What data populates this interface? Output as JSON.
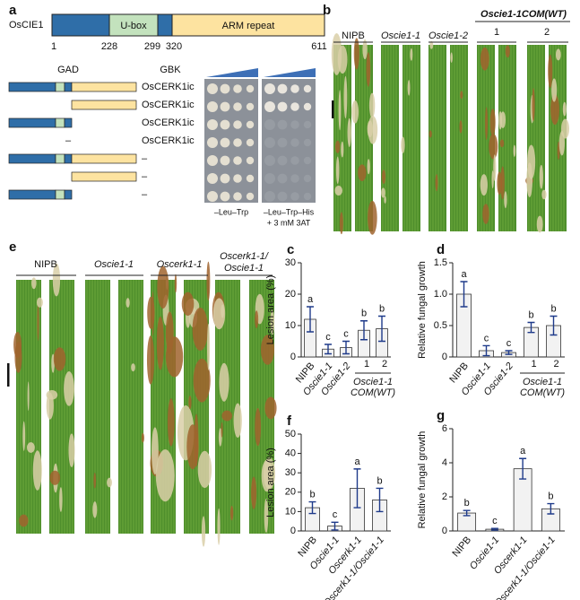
{
  "panel_a": {
    "label": "a",
    "protein": "OsCIE1",
    "domains": [
      "U-box",
      "ARM repeat"
    ],
    "positions": [
      "1",
      "228",
      "299",
      "320",
      "611"
    ],
    "gad_header": "GAD",
    "gbk_header": "GBK",
    "gad_empty": "–",
    "gbk_rows": [
      "OsCERK1ic",
      "OsCERK1ic",
      "OsCERK1ic",
      "OsCERK1ic",
      "–",
      "–",
      "–"
    ],
    "plate_labels": [
      [
        "–Leu–Trp"
      ],
      [
        "–Leu–Trp–His",
        "+ 3 mM 3AT"
      ]
    ]
  },
  "panel_b": {
    "label": "b",
    "groups": [
      "NIPB",
      "Oscie1-1",
      "Oscie1-2"
    ],
    "com_label": "Oscie1-1COM(WT)",
    "com_lines": [
      "1",
      "2"
    ]
  },
  "panel_e": {
    "label": "e",
    "groups": [
      "NIPB",
      "Oscie1-1",
      "Oscerk1-1"
    ],
    "double_mutant": [
      "Oscerk1-1/",
      "Oscie1-1"
    ]
  },
  "chart_data": [
    {
      "type": "bar",
      "panel": "c",
      "ylabel": "Lesion area (%)",
      "categories": [
        "NIPB",
        "Oscie1-1",
        "Oscie1-2",
        "1",
        "2"
      ],
      "values": [
        12,
        2.5,
        3,
        8.5,
        9
      ],
      "errors": [
        4,
        1.5,
        2,
        3,
        4
      ],
      "letters": [
        "a",
        "c",
        "c",
        "b",
        "b"
      ],
      "group_label": [
        "Oscie1-1",
        "COM(WT)"
      ],
      "ylim": [
        0,
        30
      ],
      "yticks": [
        0,
        10,
        20,
        30
      ]
    },
    {
      "type": "bar",
      "panel": "d",
      "ylabel": "Relative fungal growth",
      "categories": [
        "NIPB",
        "Oscie1-1",
        "Oscie1-2",
        "1",
        "2"
      ],
      "values": [
        1.0,
        0.1,
        0.07,
        0.47,
        0.5
      ],
      "errors": [
        0.2,
        0.08,
        0.03,
        0.08,
        0.15
      ],
      "letters": [
        "a",
        "c",
        "c",
        "b",
        "b"
      ],
      "group_label": [
        "Oscie1-1",
        "COM(WT)"
      ],
      "ylim": [
        0,
        1.5
      ],
      "yticks": [
        0,
        0.5,
        {
          "value": 1,
          "label": "1.0"
        },
        1.5
      ]
    },
    {
      "type": "bar",
      "panel": "f",
      "ylabel": "Lesion area (%)",
      "categories": [
        "NIPB",
        "Oscie1-1",
        "Oscerk1-1",
        "Oscerk1-1/Oscie1-1"
      ],
      "values": [
        12,
        2.5,
        22,
        16
      ],
      "errors": [
        3,
        2,
        10,
        6
      ],
      "letters": [
        "b",
        "c",
        "a",
        "b"
      ],
      "ylim": [
        0,
        50
      ],
      "yticks": [
        0,
        10,
        20,
        30,
        40,
        50
      ]
    },
    {
      "type": "bar",
      "panel": "g",
      "ylabel": "Relative fungal growth",
      "categories": [
        "NIPB",
        "Oscie1-1",
        "Oscerk1-1",
        "Oscerk1-1/Oscie1-1"
      ],
      "values": [
        1.05,
        0.1,
        3.65,
        1.3
      ],
      "errors": [
        0.15,
        0.05,
        0.6,
        0.3
      ],
      "letters": [
        "b",
        "c",
        "a",
        "b"
      ],
      "ylim": [
        0,
        6
      ],
      "yticks": [
        0,
        2,
        4,
        6
      ]
    }
  ]
}
